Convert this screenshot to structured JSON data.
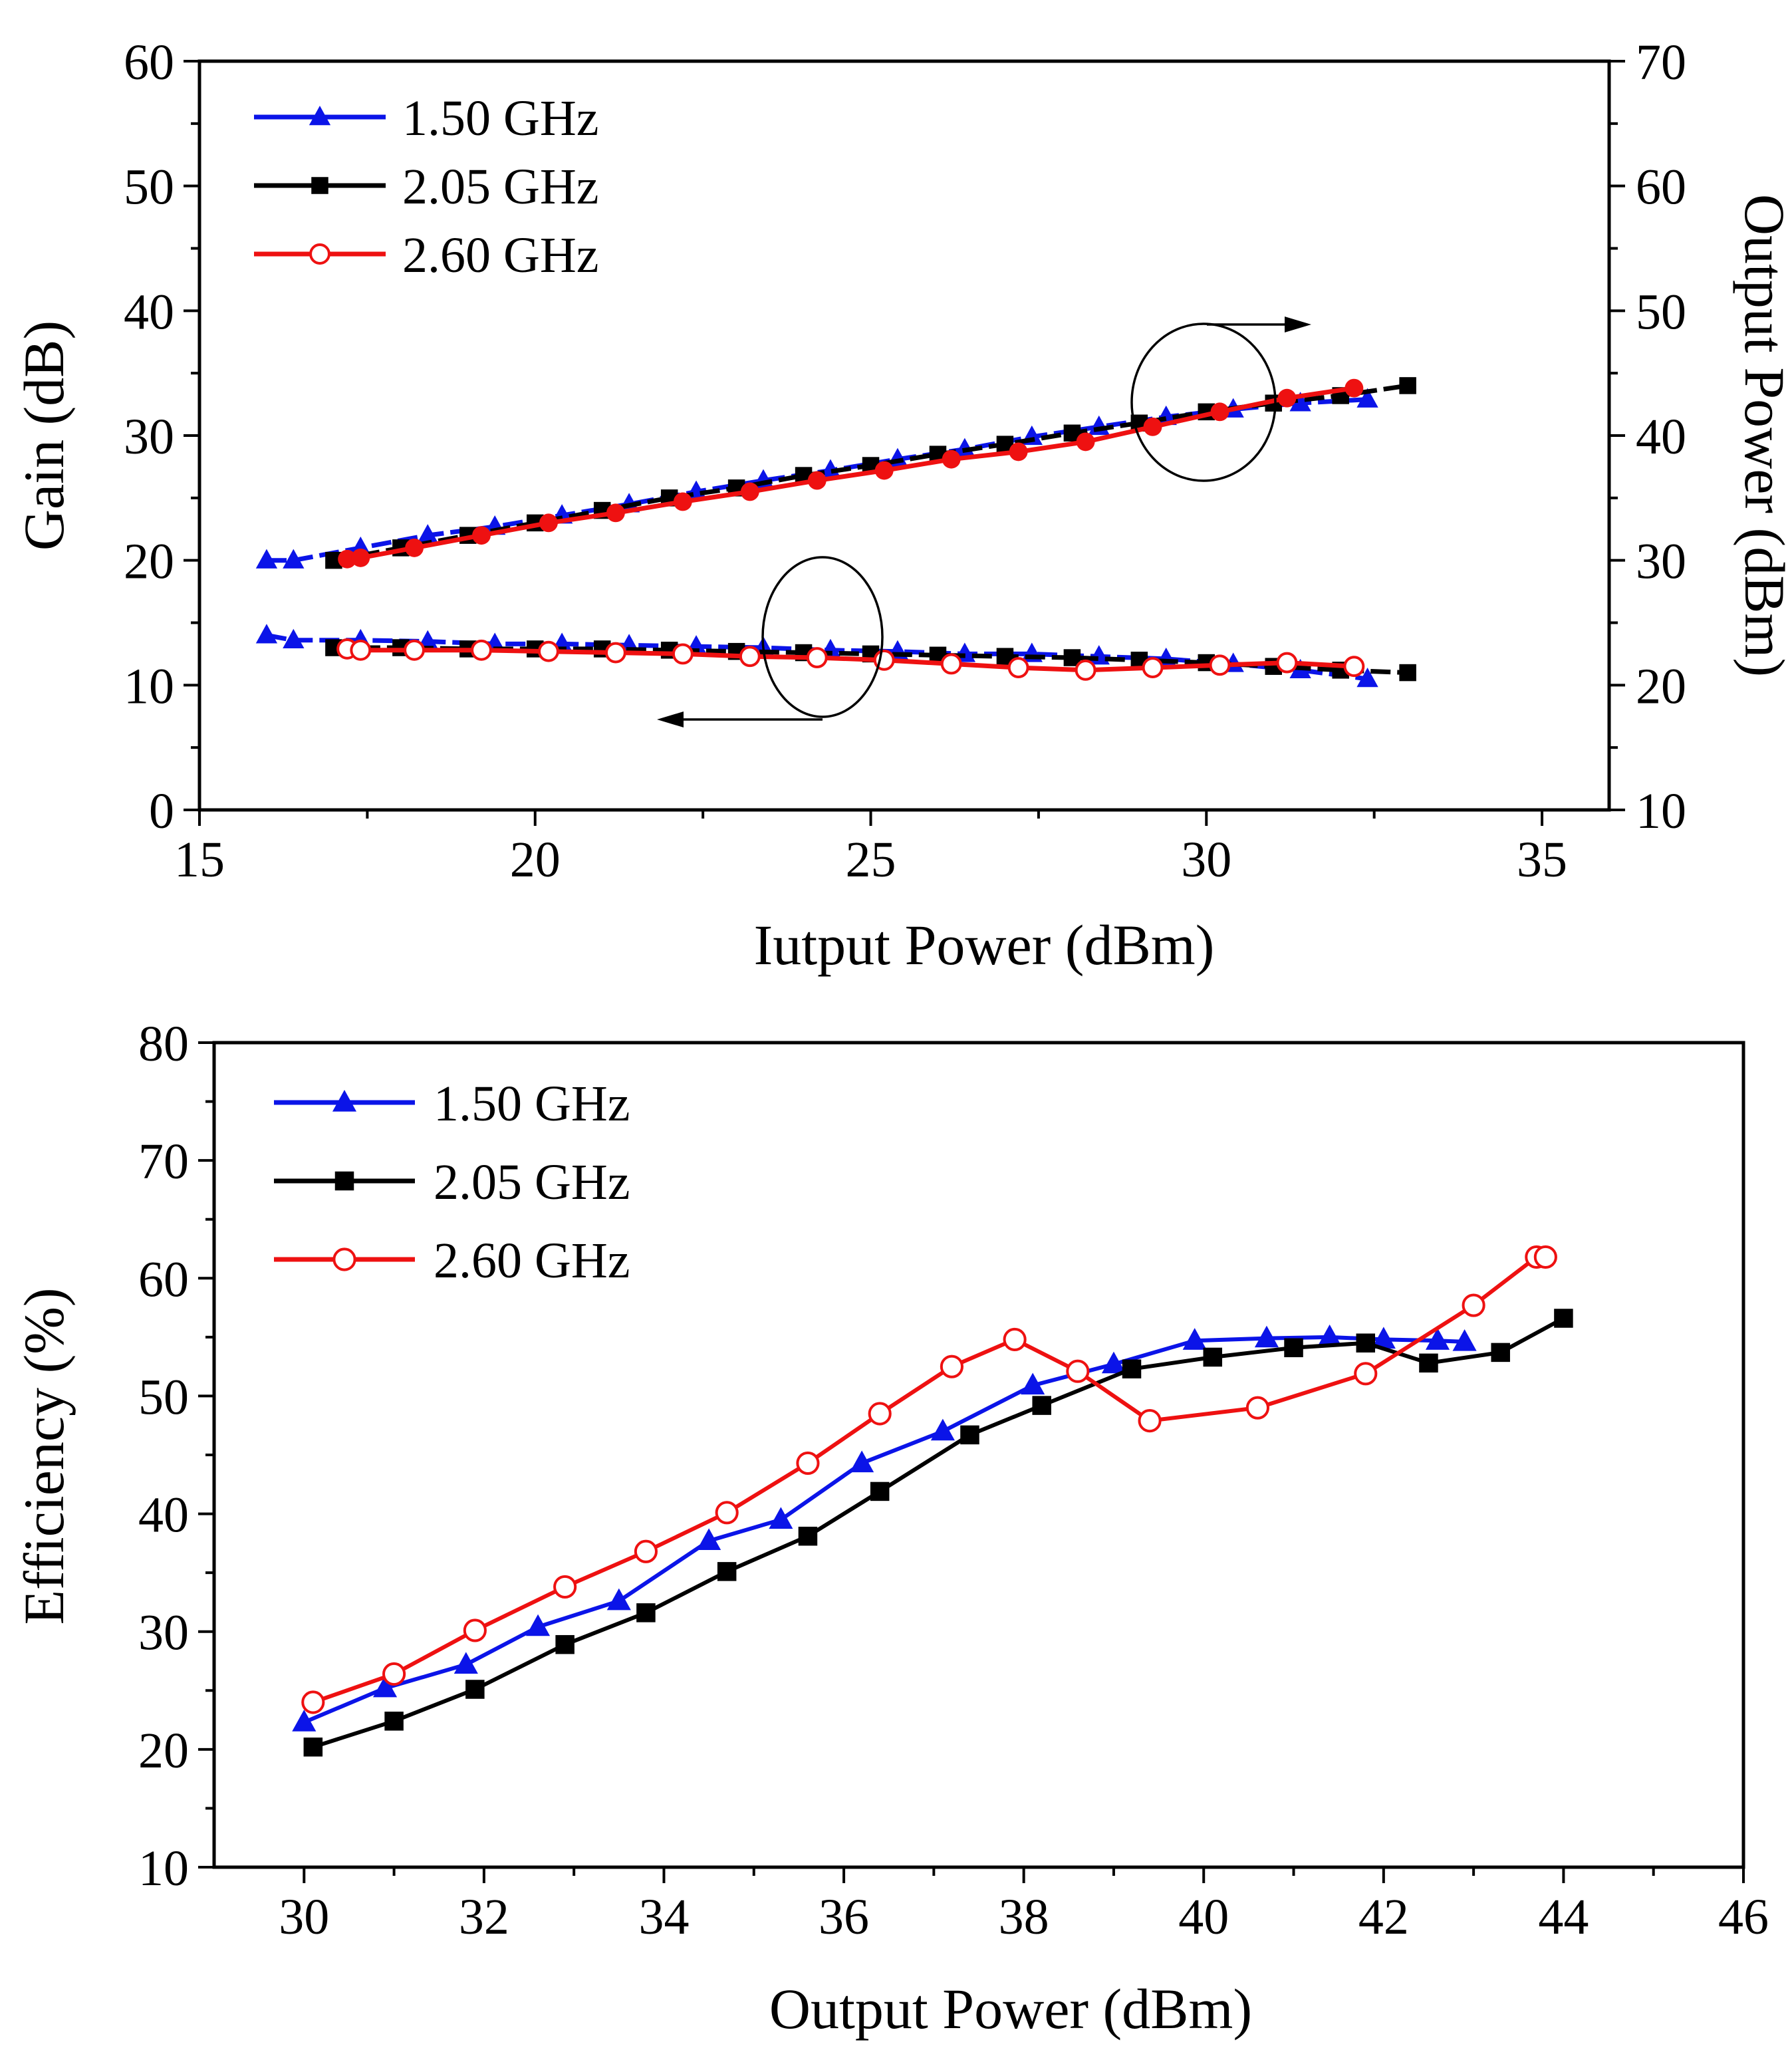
{
  "colors": {
    "s150": "#0b14e8",
    "s205": "#000000",
    "s260": "#ee1111",
    "axis": "#000000"
  },
  "chart_data": [
    {
      "type": "line",
      "title": "",
      "xlabel": "Iutput Power (dBm)",
      "ylabel": "Gain (dB)",
      "y2label": "Output Power (dBm)",
      "xlim": [
        15,
        36
      ],
      "ylim": [
        0,
        60
      ],
      "y2lim": [
        10,
        70
      ],
      "xticks": [
        15,
        20,
        25,
        30,
        35
      ],
      "yticks": [
        0,
        10,
        20,
        30,
        40,
        50,
        60
      ],
      "y2ticks": [
        10,
        20,
        30,
        40,
        50,
        60,
        70
      ],
      "legend_position": "top-left",
      "annotations": [
        "ellipse around Output Power curves with arrow pointing right (right axis)",
        "ellipse around Gain curves with arrow pointing left (left axis)"
      ],
      "series": [
        {
          "name": "1.50 GHz",
          "axis": "right",
          "metric": "Output Power",
          "marker": "triangle",
          "color": "#0b14e8",
          "dashed": true,
          "x": [
            16.0,
            16.4,
            17.4,
            18.4,
            19.4,
            20.4,
            21.4,
            22.4,
            23.4,
            24.4,
            25.4,
            26.4,
            27.4,
            28.4,
            29.4,
            30.4,
            31.4,
            32.4
          ],
          "y": [
            30.0,
            30.0,
            31.0,
            32.0,
            32.7,
            33.6,
            34.5,
            35.5,
            36.4,
            37.2,
            38.1,
            38.9,
            39.9,
            40.7,
            41.5,
            42.1,
            42.6,
            42.9
          ]
        },
        {
          "name": "2.05 GHz",
          "axis": "right",
          "metric": "Output Power",
          "marker": "square",
          "color": "#000000",
          "dashed": true,
          "x": [
            17.0,
            18.0,
            19.0,
            20.0,
            21.0,
            22.0,
            23.0,
            24.0,
            25.0,
            26.0,
            27.0,
            28.0,
            29.0,
            30.0,
            31.0,
            32.0,
            33.0
          ],
          "y": [
            30.0,
            31.0,
            32.0,
            33.0,
            34.0,
            35.0,
            35.8,
            36.8,
            37.6,
            38.5,
            39.3,
            40.2,
            41.0,
            41.9,
            42.6,
            43.2,
            44.0
          ]
        },
        {
          "name": "2.60 GHz",
          "axis": "right",
          "metric": "Output Power",
          "marker": "filled-circle",
          "color": "#ee1111",
          "dashed": false,
          "x": [
            17.2,
            17.4,
            18.2,
            19.2,
            20.2,
            21.2,
            22.2,
            23.2,
            24.2,
            25.2,
            26.2,
            27.2,
            28.2,
            29.2,
            30.2,
            31.2,
            32.2
          ],
          "y": [
            30.1,
            30.2,
            31.0,
            32.0,
            33.0,
            33.8,
            34.7,
            35.5,
            36.4,
            37.2,
            38.1,
            38.7,
            39.5,
            40.7,
            41.9,
            43.0,
            43.8
          ]
        },
        {
          "name": "1.50 GHz",
          "axis": "left",
          "metric": "Gain",
          "marker": "triangle",
          "color": "#0b14e8",
          "dashed": true,
          "x": [
            16.0,
            16.4,
            17.4,
            18.4,
            19.4,
            20.4,
            21.4,
            22.4,
            23.4,
            24.4,
            25.4,
            26.4,
            27.4,
            28.4,
            29.4,
            30.4,
            31.4,
            32.4
          ],
          "y": [
            14.0,
            13.6,
            13.6,
            13.5,
            13.3,
            13.3,
            13.2,
            13.1,
            13.0,
            12.8,
            12.7,
            12.5,
            12.5,
            12.3,
            12.1,
            11.7,
            11.2,
            10.5
          ]
        },
        {
          "name": "2.05 GHz",
          "axis": "left",
          "metric": "Gain",
          "marker": "square",
          "color": "#000000",
          "dashed": true,
          "x": [
            17.0,
            18.0,
            19.0,
            20.0,
            21.0,
            22.0,
            23.0,
            24.0,
            25.0,
            26.0,
            27.0,
            28.0,
            29.0,
            30.0,
            31.0,
            32.0,
            33.0
          ],
          "y": [
            13.0,
            13.0,
            12.9,
            12.9,
            12.9,
            12.8,
            12.7,
            12.6,
            12.5,
            12.4,
            12.3,
            12.2,
            12.0,
            11.8,
            11.5,
            11.2,
            11.0
          ]
        },
        {
          "name": "2.60 GHz",
          "axis": "left",
          "metric": "Gain",
          "marker": "open-circle",
          "color": "#ee1111",
          "dashed": false,
          "x": [
            17.2,
            17.4,
            18.2,
            19.2,
            20.2,
            21.2,
            22.2,
            23.2,
            24.2,
            25.2,
            26.2,
            27.2,
            28.2,
            29.2,
            30.2,
            31.2,
            32.2
          ],
          "y": [
            12.9,
            12.8,
            12.8,
            12.8,
            12.7,
            12.6,
            12.5,
            12.3,
            12.2,
            12.0,
            11.7,
            11.4,
            11.2,
            11.4,
            11.6,
            11.8,
            11.5
          ]
        }
      ],
      "legend": [
        {
          "name": "1.50 GHz",
          "marker": "triangle",
          "color": "#0b14e8"
        },
        {
          "name": "2.05 GHz",
          "marker": "square",
          "color": "#000000"
        },
        {
          "name": "2.60 GHz",
          "marker": "open-circle",
          "color": "#ee1111"
        }
      ]
    },
    {
      "type": "line",
      "title": "",
      "xlabel": "Output Power (dBm)",
      "ylabel": "Efficiency (%)",
      "xlim": [
        29,
        46
      ],
      "ylim": [
        10,
        80
      ],
      "xticks": [
        30,
        32,
        34,
        36,
        38,
        40,
        42,
        44,
        46
      ],
      "yticks": [
        10,
        20,
        30,
        40,
        50,
        60,
        70,
        80
      ],
      "legend_position": "top-left",
      "series": [
        {
          "name": "1.50 GHz",
          "marker": "triangle",
          "color": "#0b14e8",
          "x": [
            30.0,
            30.9,
            31.8,
            32.6,
            33.5,
            34.5,
            35.3,
            36.2,
            37.1,
            38.1,
            39.0,
            39.9,
            40.7,
            41.4,
            42.0,
            42.6,
            42.9
          ],
          "y": [
            22.3,
            25.2,
            27.2,
            30.4,
            32.6,
            37.7,
            39.5,
            44.3,
            47.0,
            50.9,
            52.7,
            54.7,
            54.9,
            55.0,
            54.8,
            54.7,
            54.6
          ]
        },
        {
          "name": "2.05 GHz",
          "marker": "square",
          "color": "#000000",
          "x": [
            30.1,
            31.0,
            31.9,
            32.9,
            33.8,
            34.7,
            35.6,
            36.4,
            37.4,
            38.2,
            39.2,
            40.1,
            41.0,
            41.8,
            42.5,
            43.3,
            44.0
          ],
          "y": [
            20.2,
            22.4,
            25.1,
            28.9,
            31.6,
            35.1,
            38.1,
            41.9,
            46.7,
            49.2,
            52.3,
            53.3,
            54.1,
            54.5,
            52.8,
            53.7,
            56.6
          ]
        },
        {
          "name": "2.60 GHz",
          "marker": "open-circle",
          "color": "#ee1111",
          "x": [
            30.1,
            31.0,
            31.9,
            32.9,
            33.8,
            34.7,
            35.6,
            36.4,
            37.2,
            37.9,
            38.6,
            39.4,
            40.6,
            41.8,
            43.0,
            43.7,
            43.8
          ],
          "y": [
            24.0,
            26.4,
            30.1,
            33.8,
            36.8,
            40.1,
            44.3,
            48.5,
            52.5,
            54.8,
            52.1,
            47.9,
            49.0,
            51.9,
            57.7,
            61.8,
            61.8
          ]
        }
      ],
      "legend": [
        {
          "name": "1.50 GHz",
          "marker": "triangle",
          "color": "#0b14e8"
        },
        {
          "name": "2.05 GHz",
          "marker": "square",
          "color": "#000000"
        },
        {
          "name": "2.60 GHz",
          "marker": "open-circle",
          "color": "#ee1111"
        }
      ]
    }
  ]
}
